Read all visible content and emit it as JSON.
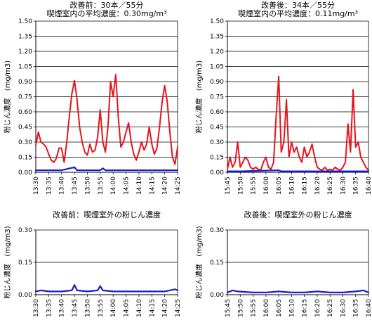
{
  "chart_data": [
    {
      "type": "line",
      "title": "改善前：30本／55分",
      "subtitle": "喫煙室内の平均濃度：0.30mg/m³",
      "ylabel": "粉じん濃度　(mg/m3)",
      "xlabel": "",
      "ylim": [
        0,
        1.5
      ],
      "y_ticks": [
        "1.50",
        "1.35",
        "1.20",
        "1.05",
        "0.90",
        "0.75",
        "0.60",
        "0.45",
        "0.30",
        "0.15",
        "0.00"
      ],
      "x_ticks": [
        "13:30",
        "13:35",
        "13:40",
        "13:45",
        "13:50",
        "13:55",
        "14:00",
        "14:05",
        "14:10",
        "14:15",
        "14:20",
        "14:25"
      ],
      "x_range": [
        "13:30",
        "14:25"
      ],
      "grid": true,
      "series": [
        {
          "color": "#e8141b",
          "points": [
            [
              "13:30",
              0.27
            ],
            [
              "13:31",
              0.4
            ],
            [
              "13:32",
              0.3
            ],
            [
              "13:33",
              0.28
            ],
            [
              "13:34",
              0.25
            ],
            [
              "13:35",
              0.18
            ],
            [
              "13:36",
              0.12
            ],
            [
              "13:37",
              0.1
            ],
            [
              "13:38",
              0.14
            ],
            [
              "13:39",
              0.24
            ],
            [
              "13:40",
              0.24
            ],
            [
              "13:41",
              0.1
            ],
            [
              "13:42",
              0.3
            ],
            [
              "13:43",
              0.55
            ],
            [
              "13:44",
              0.78
            ],
            [
              "13:45",
              0.91
            ],
            [
              "13:46",
              0.72
            ],
            [
              "13:47",
              0.45
            ],
            [
              "13:48",
              0.3
            ],
            [
              "13:49",
              0.2
            ],
            [
              "13:50",
              0.17
            ],
            [
              "13:51",
              0.28
            ],
            [
              "13:52",
              0.2
            ],
            [
              "13:53",
              0.22
            ],
            [
              "13:54",
              0.35
            ],
            [
              "13:55",
              0.62
            ],
            [
              "13:56",
              0.3
            ],
            [
              "13:57",
              0.2
            ],
            [
              "13:58",
              0.45
            ],
            [
              "13:59",
              0.9
            ],
            [
              "14:00",
              0.75
            ],
            [
              "14:01",
              0.97
            ],
            [
              "14:02",
              0.55
            ],
            [
              "14:03",
              0.25
            ],
            [
              "14:04",
              0.3
            ],
            [
              "14:05",
              0.4
            ],
            [
              "14:06",
              0.49
            ],
            [
              "14:07",
              0.3
            ],
            [
              "14:08",
              0.18
            ],
            [
              "14:09",
              0.12
            ],
            [
              "14:10",
              0.2
            ],
            [
              "14:11",
              0.3
            ],
            [
              "14:12",
              0.22
            ],
            [
              "14:13",
              0.28
            ],
            [
              "14:14",
              0.45
            ],
            [
              "14:15",
              0.28
            ],
            [
              "14:16",
              0.18
            ],
            [
              "14:17",
              0.24
            ],
            [
              "14:18",
              0.45
            ],
            [
              "14:19",
              0.7
            ],
            [
              "14:20",
              0.86
            ],
            [
              "14:21",
              0.7
            ],
            [
              "14:22",
              0.4
            ],
            [
              "14:23",
              0.15
            ],
            [
              "14:24",
              0.08
            ],
            [
              "14:25",
              0.25
            ]
          ]
        },
        {
          "color": "#1a1ad0",
          "points": [
            [
              "13:30",
              0.02
            ],
            [
              "13:40",
              0.02
            ],
            [
              "13:45",
              0.05
            ],
            [
              "13:46",
              0.02
            ],
            [
              "13:55",
              0.02
            ],
            [
              "13:56",
              0.04
            ],
            [
              "13:57",
              0.02
            ],
            [
              "14:25",
              0.02
            ]
          ]
        }
      ]
    },
    {
      "type": "line",
      "title": "改善後：34本／55分",
      "subtitle": "喫煙室内の平均濃度：0.11mg/m³",
      "ylabel": "粉じん濃度　(mg/m3)",
      "xlabel": "",
      "ylim": [
        0,
        1.5
      ],
      "y_ticks": [
        "1.50",
        "1.35",
        "1.20",
        "1.05",
        "0.90",
        "0.75",
        "0.60",
        "0.45",
        "0.30",
        "0.15",
        "0.00"
      ],
      "x_ticks": [
        "15:45",
        "15:50",
        "15:55",
        "16:00",
        "16:05",
        "16:10",
        "16:15",
        "16:20",
        "16:25",
        "16:30",
        "16:35",
        "16:40"
      ],
      "x_range": [
        "15:45",
        "16:40"
      ],
      "grid": true,
      "series": [
        {
          "color": "#e8141b",
          "points": [
            [
              "15:45",
              0.03
            ],
            [
              "15:46",
              0.15
            ],
            [
              "15:47",
              0.05
            ],
            [
              "15:48",
              0.1
            ],
            [
              "15:49",
              0.3
            ],
            [
              "15:50",
              0.05
            ],
            [
              "15:51",
              0.1
            ],
            [
              "15:52",
              0.15
            ],
            [
              "15:53",
              0.12
            ],
            [
              "15:54",
              0.05
            ],
            [
              "15:55",
              0.03
            ],
            [
              "15:56",
              0.05
            ],
            [
              "15:57",
              0.03
            ],
            [
              "15:58",
              0.02
            ],
            [
              "15:59",
              0.1
            ],
            [
              "16:00",
              0.15
            ],
            [
              "16:01",
              0.05
            ],
            [
              "16:02",
              0.03
            ],
            [
              "16:03",
              0.1
            ],
            [
              "16:04",
              0.55
            ],
            [
              "16:05",
              0.95
            ],
            [
              "16:06",
              0.2
            ],
            [
              "16:07",
              0.3
            ],
            [
              "16:08",
              0.72
            ],
            [
              "16:09",
              0.15
            ],
            [
              "16:10",
              0.3
            ],
            [
              "16:11",
              0.2
            ],
            [
              "16:12",
              0.25
            ],
            [
              "16:13",
              0.15
            ],
            [
              "16:14",
              0.1
            ],
            [
              "16:15",
              0.25
            ],
            [
              "16:16",
              0.15
            ],
            [
              "16:17",
              0.2
            ],
            [
              "16:18",
              0.28
            ],
            [
              "16:19",
              0.15
            ],
            [
              "16:20",
              0.05
            ],
            [
              "16:21",
              0.03
            ],
            [
              "16:22",
              0.02
            ],
            [
              "16:23",
              0.05
            ],
            [
              "16:24",
              0.02
            ],
            [
              "16:25",
              0.03
            ],
            [
              "16:26",
              0.02
            ],
            [
              "16:27",
              0.05
            ],
            [
              "16:28",
              0.03
            ],
            [
              "16:29",
              0.02
            ],
            [
              "16:30",
              0.05
            ],
            [
              "16:31",
              0.1
            ],
            [
              "16:32",
              0.48
            ],
            [
              "16:33",
              0.2
            ],
            [
              "16:34",
              0.82
            ],
            [
              "16:35",
              0.25
            ],
            [
              "16:36",
              0.3
            ],
            [
              "16:37",
              0.15
            ],
            [
              "16:38",
              0.1
            ],
            [
              "16:39",
              0.05
            ],
            [
              "16:40",
              0.02
            ]
          ]
        },
        {
          "color": "#1a1ad0",
          "points": [
            [
              "15:45",
              0.01
            ],
            [
              "15:50",
              0.01
            ],
            [
              "16:05",
              0.02
            ],
            [
              "16:06",
              0.01
            ],
            [
              "16:40",
              0.01
            ]
          ]
        }
      ]
    },
    {
      "type": "line",
      "title": "改善前：喫煙室外の粉じん濃度",
      "ylabel": "粉じん濃度　(mg/m3)",
      "xlabel": "",
      "ylim": [
        0,
        0.3
      ],
      "y_ticks": [
        "0.30",
        "0.15",
        "0.00"
      ],
      "x_ticks": [
        "13:30",
        "13:35",
        "13:40",
        "13:45",
        "13:50",
        "13:55",
        "14:00",
        "14:05",
        "14:10",
        "14:15",
        "14:20",
        "14:25"
      ],
      "x_range": [
        "13:30",
        "14:25"
      ],
      "grid": true,
      "series": [
        {
          "color": "#1a1ad0",
          "points": [
            [
              "13:30",
              0.015
            ],
            [
              "13:32",
              0.02
            ],
            [
              "13:35",
              0.015
            ],
            [
              "13:40",
              0.015
            ],
            [
              "13:44",
              0.02
            ],
            [
              "13:45",
              0.045
            ],
            [
              "13:46",
              0.02
            ],
            [
              "13:50",
              0.015
            ],
            [
              "13:54",
              0.02
            ],
            [
              "13:55",
              0.04
            ],
            [
              "13:56",
              0.02
            ],
            [
              "14:00",
              0.015
            ],
            [
              "14:05",
              0.015
            ],
            [
              "14:10",
              0.015
            ],
            [
              "14:15",
              0.015
            ],
            [
              "14:20",
              0.015
            ],
            [
              "14:24",
              0.025
            ],
            [
              "14:25",
              0.02
            ]
          ]
        }
      ]
    },
    {
      "type": "line",
      "title": "改善後：喫煙室外の粉じん濃度",
      "ylabel": "粉じん濃度　(mg/m3)",
      "xlabel": "",
      "ylim": [
        0,
        0.3
      ],
      "y_ticks": [
        "0.30",
        "0.15",
        "0.00"
      ],
      "x_ticks": [
        "15:45",
        "15:50",
        "15:55",
        "16:00",
        "16:05",
        "16:10",
        "16:15",
        "16:20",
        "16:25",
        "16:30",
        "16:35",
        "16:40"
      ],
      "x_range": [
        "15:45",
        "16:40"
      ],
      "grid": true,
      "series": [
        {
          "color": "#1a1ad0",
          "points": [
            [
              "15:45",
              0.01
            ],
            [
              "15:47",
              0.02
            ],
            [
              "15:49",
              0.015
            ],
            [
              "15:55",
              0.01
            ],
            [
              "16:00",
              0.01
            ],
            [
              "16:05",
              0.015
            ],
            [
              "16:10",
              0.01
            ],
            [
              "16:15",
              0.01
            ],
            [
              "16:20",
              0.015
            ],
            [
              "16:25",
              0.01
            ],
            [
              "16:30",
              0.01
            ],
            [
              "16:35",
              0.015
            ],
            [
              "16:38",
              0.02
            ],
            [
              "16:40",
              0.01
            ]
          ]
        }
      ]
    }
  ]
}
